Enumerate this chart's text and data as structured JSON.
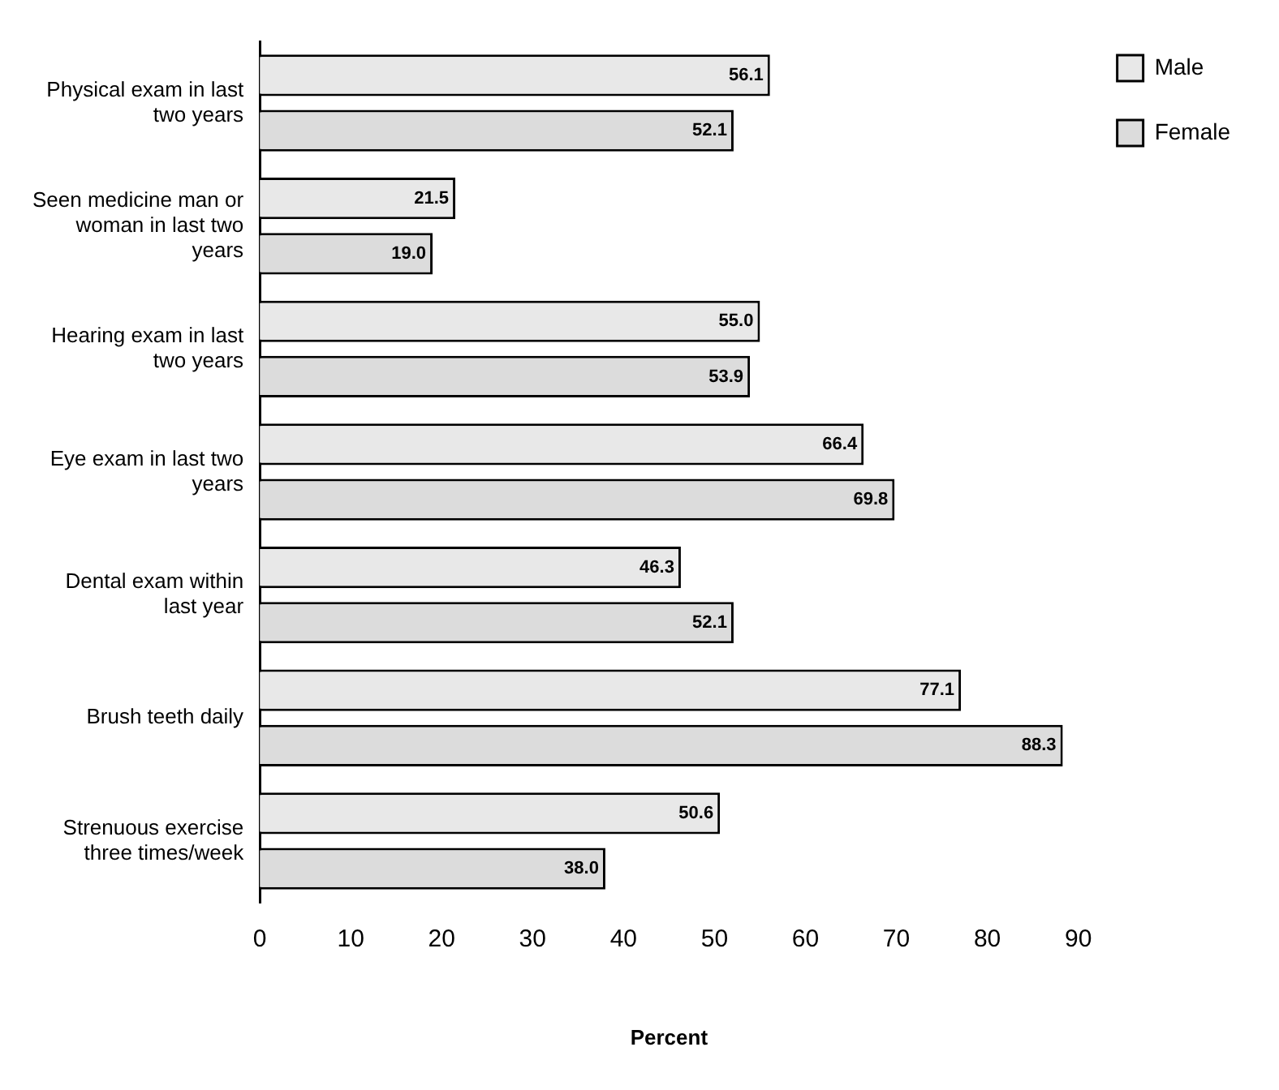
{
  "chart_data": {
    "type": "bar",
    "orientation": "horizontal",
    "xlabel": "Percent",
    "categories": [
      "Physical exam in last two years",
      "Seen medicine man or woman in last two years",
      "Hearing exam in last two years",
      "Eye exam in last two years",
      "Dental exam within last year",
      "Brush teeth daily",
      "Strenuous exercise three times/week"
    ],
    "series": [
      {
        "name": "Male",
        "color": "#e8e8e8",
        "values": [
          56.1,
          21.5,
          55.0,
          66.4,
          46.3,
          77.1,
          50.6
        ],
        "value_labels": [
          "56.1",
          "21.5",
          "55.0",
          "66.4",
          "46.3",
          "77.1",
          "50.6"
        ]
      },
      {
        "name": "Female",
        "color": "#dcdcdc",
        "values": [
          52.1,
          19.0,
          53.9,
          69.8,
          52.1,
          88.3,
          38.0
        ],
        "value_labels": [
          "52.1",
          "19.0",
          "53.9",
          "69.8",
          "52.1",
          "88.3",
          "38.0"
        ]
      }
    ],
    "xlim": [
      0,
      90
    ],
    "xticks": [
      0,
      10,
      20,
      30,
      40,
      50,
      60,
      70,
      80,
      90
    ],
    "grid": false,
    "legend": "right"
  }
}
